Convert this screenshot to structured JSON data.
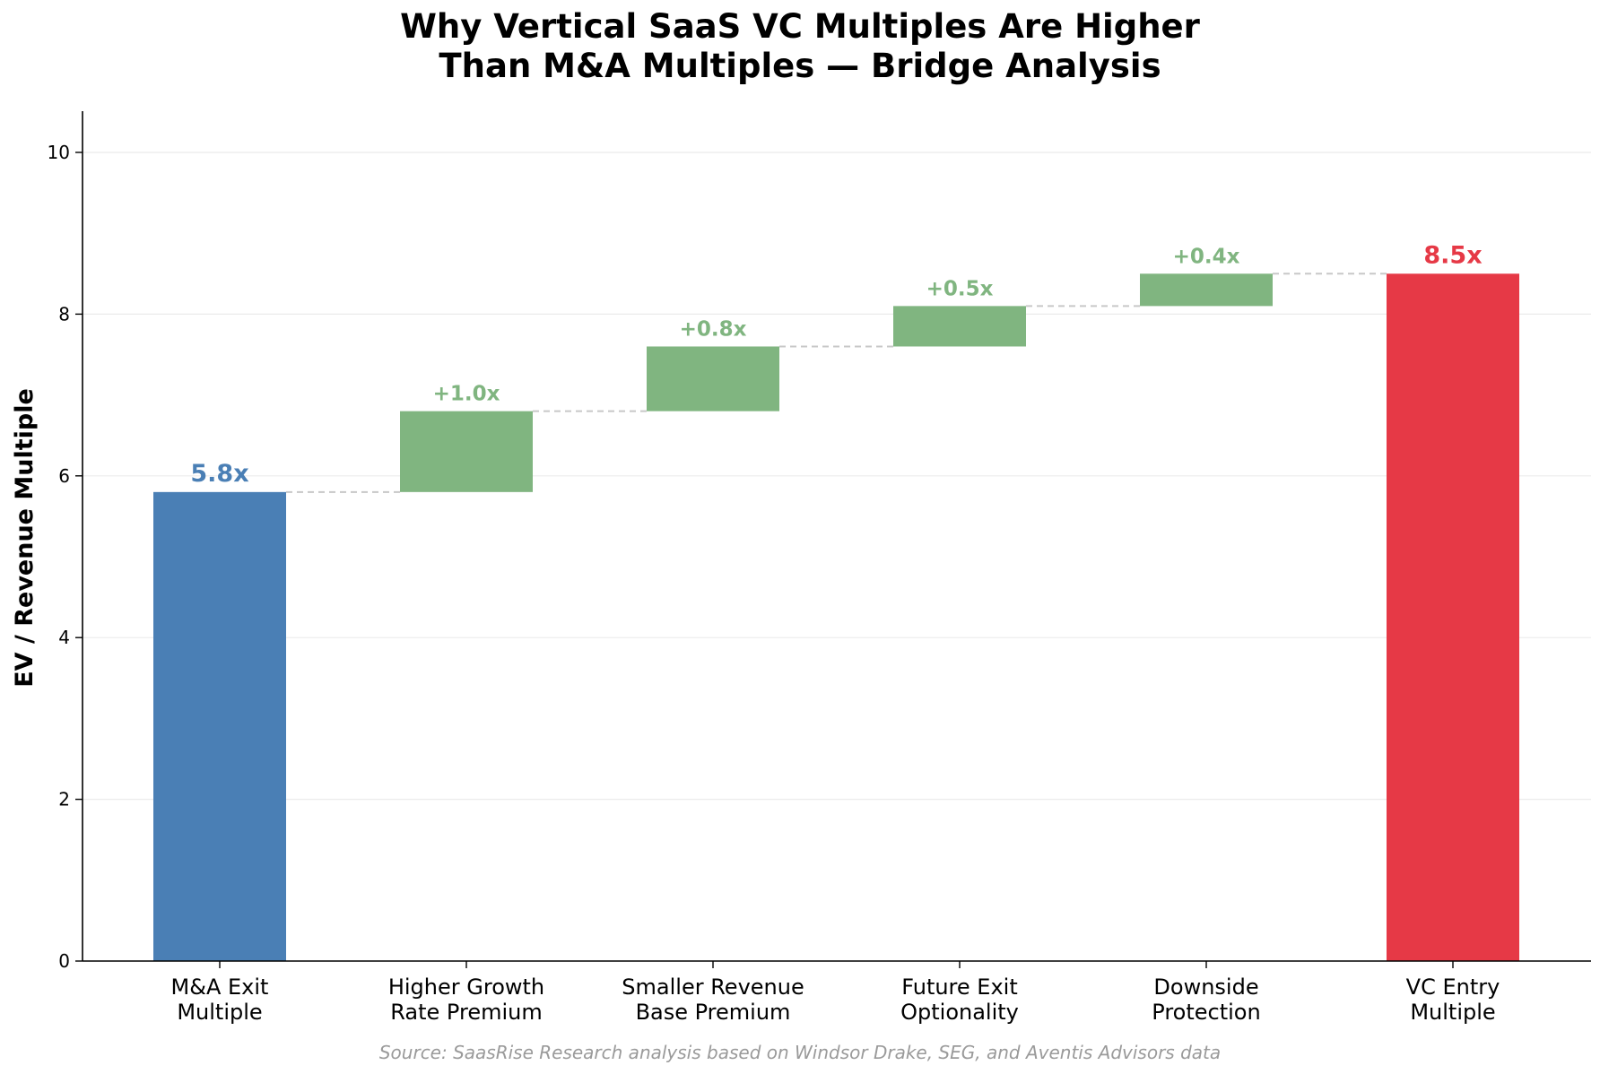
{
  "chart_data": {
    "type": "bar",
    "subtype": "waterfall",
    "title_lines": [
      "Why Vertical SaaS VC Multiples Are Higher",
      "Than M&A Multiples — Bridge Analysis"
    ],
    "xlabel": "",
    "ylabel": "EV / Revenue Multiple",
    "ylim": [
      0,
      10.5
    ],
    "yticks": [
      "0",
      "2",
      "4",
      "6",
      "8",
      "10"
    ],
    "ytick_values": [
      0,
      2,
      4,
      6,
      8,
      10
    ],
    "grid": "horizontal",
    "categories": [
      [
        "M&A Exit",
        "Multiple"
      ],
      [
        "Higher Growth",
        "Rate Premium"
      ],
      [
        "Smaller Revenue",
        "Base Premium"
      ],
      [
        "Future Exit",
        "Optionality"
      ],
      [
        "Downside",
        "Protection"
      ],
      [
        "VC Entry",
        "Multiple"
      ]
    ],
    "bars": [
      {
        "kind": "total",
        "start": 0,
        "end": 5.8,
        "label": "5.8x",
        "color": "#4a7fb5"
      },
      {
        "kind": "increment",
        "start": 5.8,
        "end": 6.8,
        "label": "+1.0x",
        "color": "#80b580"
      },
      {
        "kind": "increment",
        "start": 6.8,
        "end": 7.6,
        "label": "+0.8x",
        "color": "#80b580"
      },
      {
        "kind": "increment",
        "start": 7.6,
        "end": 8.1,
        "label": "+0.5x",
        "color": "#80b580"
      },
      {
        "kind": "increment",
        "start": 8.1,
        "end": 8.5,
        "label": "+0.4x",
        "color": "#80b580"
      },
      {
        "kind": "total",
        "start": 0,
        "end": 8.5,
        "label": "8.5x",
        "color": "#e63946"
      }
    ],
    "connector_color": "#c8c8c8",
    "source": "Source: SaasRise Research analysis based on Windsor Drake, SEG, and Aventis Advisors data"
  }
}
